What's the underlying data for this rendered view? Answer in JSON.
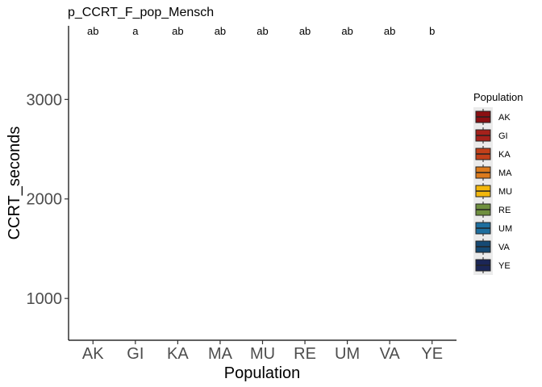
{
  "chart_data": {
    "type": "box",
    "title": "p_CCRT_F_pop_Mensch",
    "xlabel": "Population",
    "ylabel": "CCRT_seconds",
    "categories": [
      "AK",
      "GI",
      "KA",
      "MA",
      "MU",
      "RE",
      "UM",
      "VA",
      "YE"
    ],
    "significance_labels": [
      "ab",
      "a",
      "ab",
      "ab",
      "ab",
      "ab",
      "ab",
      "ab",
      "b"
    ],
    "y_ticks": [
      1000,
      2000,
      3000
    ],
    "ylim": [
      580,
      3740
    ],
    "grid": false,
    "legend": {
      "title": "Population",
      "position": "right",
      "entries": [
        {
          "label": "AK",
          "color": "#8B0F12"
        },
        {
          "label": "GI",
          "color": "#A5211B"
        },
        {
          "label": "KA",
          "color": "#C2401A"
        },
        {
          "label": "MA",
          "color": "#DB7A1C"
        },
        {
          "label": "MU",
          "color": "#F2B70C"
        },
        {
          "label": "RE",
          "color": "#6E8F3E"
        },
        {
          "label": "UM",
          "color": "#1D6E9E"
        },
        {
          "label": "VA",
          "color": "#164A74"
        },
        {
          "label": "YE",
          "color": "#1B2657"
        }
      ]
    }
  }
}
